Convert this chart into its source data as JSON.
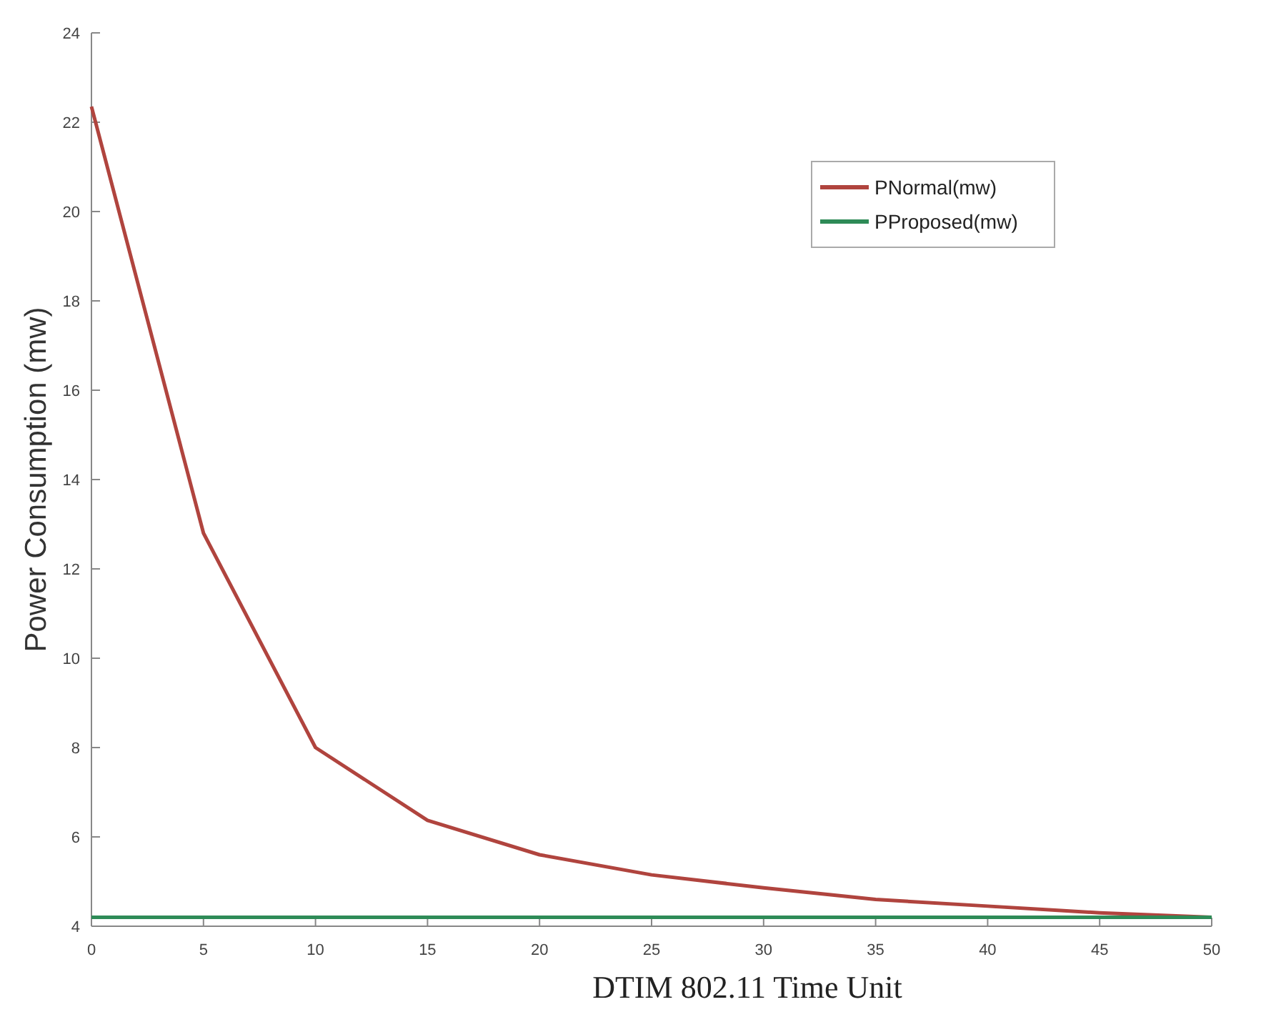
{
  "chart_data": {
    "type": "line",
    "xlabel": "DTIM     802.11 Time Unit",
    "ylabel": "Power Consumption  (mw)",
    "x": [
      0,
      5,
      10,
      15,
      20,
      25,
      30,
      35,
      40,
      45,
      50
    ],
    "series": [
      {
        "name": "PNormal(mw)",
        "color": "#b0443e",
        "values": [
          22.35,
          12.8,
          8.0,
          6.37,
          5.6,
          5.15,
          4.86,
          4.6,
          4.45,
          4.3,
          4.2
        ]
      },
      {
        "name": "PProposed(mw)",
        "color": "#2e8b57",
        "values": [
          4.2,
          4.2,
          4.2,
          4.2,
          4.2,
          4.2,
          4.2,
          4.2,
          4.2,
          4.2,
          4.2
        ]
      }
    ],
    "xlim": [
      0,
      50
    ],
    "xticks": [
      0,
      5,
      10,
      15,
      20,
      25,
      30,
      35,
      40,
      45,
      50
    ],
    "ylim": [
      4,
      24
    ],
    "yticks": [
      4,
      6,
      8,
      10,
      12,
      14,
      16,
      18,
      20,
      22,
      24
    ],
    "legend": "top right",
    "marker": "none",
    "line_style": "solid",
    "grid": false
  }
}
